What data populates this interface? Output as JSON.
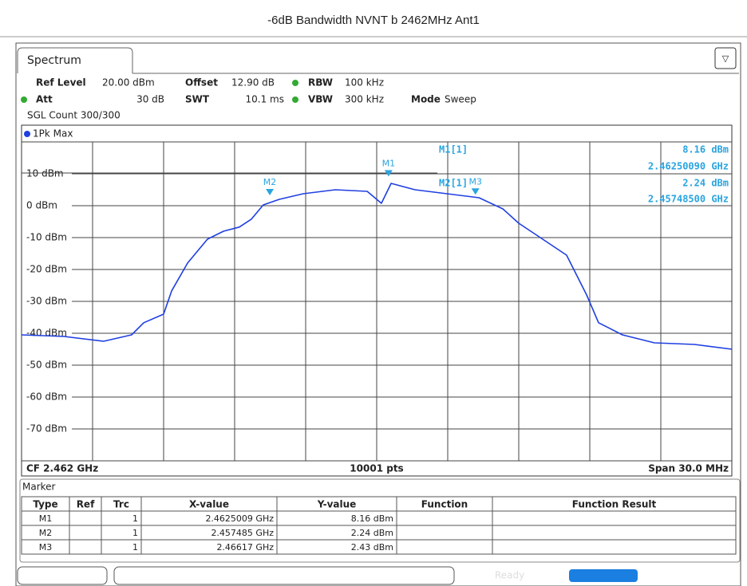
{
  "header": {
    "title": "-6dB Bandwidth NVNT b 2462MHz Ant1"
  },
  "tab": "Spectrum",
  "settings": {
    "ref_level_label": "Ref Level",
    "ref_level": "20.00 dBm",
    "offset_label": "Offset",
    "offset": "12.90 dB",
    "rbw_label": "RBW",
    "rbw": "100 kHz",
    "att_label": "Att",
    "att": "30 dB",
    "swt_label": "SWT",
    "swt": "10.1 ms",
    "vbw_label": "VBW",
    "vbw": "300 kHz",
    "mode_label": "Mode",
    "mode": "Sweep",
    "sgl_count": "SGL Count 300/300"
  },
  "chart_data": {
    "type": "line",
    "trace_name": "1Pk Max",
    "color": "#1f3fe0",
    "grid": true,
    "xlim": [
      2.447,
      2.477
    ],
    "ylim": [
      -80,
      20
    ],
    "yticks": [
      {
        "value": 10,
        "label": "10 dBm"
      },
      {
        "value": 0,
        "label": "0 dBm"
      },
      {
        "value": -10,
        "label": "-10 dBm"
      },
      {
        "value": -20,
        "label": "-20 dBm"
      },
      {
        "value": -30,
        "label": "-30 dBm"
      },
      {
        "value": -40,
        "label": "-40 dBm"
      },
      {
        "value": -50,
        "label": "-50 dBm"
      },
      {
        "value": -60,
        "label": "-60 dBm"
      },
      {
        "value": -70,
        "label": "-70 dBm"
      }
    ],
    "x": [
      2.447,
      2.44879,
      2.45047,
      2.45165,
      2.45216,
      2.453,
      2.45334,
      2.45401,
      2.45485,
      2.45553,
      2.4562,
      2.45671,
      2.45721,
      2.45789,
      2.4589,
      2.46025,
      2.4616,
      2.4622,
      2.46261,
      2.46362,
      2.46497,
      2.46632,
      2.46733,
      2.468,
      2.46901,
      2.47002,
      2.47087,
      2.47137,
      2.47238,
      2.47373,
      2.47542,
      2.477
    ],
    "values": [
      -40.5,
      -41,
      -42.5,
      -40.5,
      -36.7,
      -34,
      -26.7,
      -18,
      -10.5,
      -8,
      -6.7,
      -4.2,
      0.25,
      2,
      3.75,
      5,
      4.5,
      0.75,
      7,
      5,
      3.75,
      2.5,
      -1,
      -5.5,
      -10.5,
      -15.5,
      -28,
      -36.7,
      -40.5,
      -43,
      -43.5,
      -45
    ],
    "markers": [
      {
        "name": "M1",
        "x": 2.4625009,
        "y": 8.16
      },
      {
        "name": "M2",
        "x": 2.457485,
        "y": 2.24
      },
      {
        "name": "M3",
        "x": 2.46617,
        "y": 2.43
      }
    ],
    "readout": [
      "M1[1]",
      "8.16 dBm",
      "2.46250090 GHz",
      "M2[1]",
      "2.24 dBm",
      "2.45748500 GHz"
    ],
    "footer": {
      "cf": "CF 2.462 GHz",
      "points": "10001 pts",
      "span": "Span 30.0 MHz"
    }
  },
  "marker_table": {
    "title": "Marker",
    "columns": [
      "Type",
      "Ref",
      "Trc",
      "X-value",
      "Y-value",
      "Function",
      "Function Result"
    ],
    "rows": [
      {
        "type": "M1",
        "trc": "1",
        "x": "2.4625009 GHz",
        "y": "8.16 dBm"
      },
      {
        "type": "M2",
        "trc": "1",
        "x": "2.457485 GHz",
        "y": "2.24 dBm"
      },
      {
        "type": "M3",
        "trc": "1",
        "x": "2.46617 GHz",
        "y": "2.43 dBm"
      }
    ]
  },
  "status": "Ready"
}
